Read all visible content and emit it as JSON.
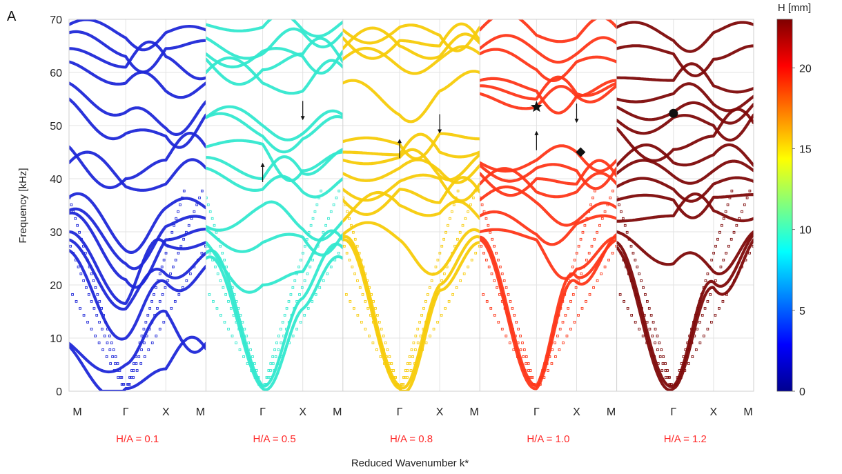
{
  "figure_label": "A",
  "chart_data": {
    "type": "scatter",
    "ylabel": "Frequency [kHz]",
    "xlabel": "Reduced Wavenumber k*",
    "ylim": [
      0,
      70
    ],
    "yticks": [
      "0",
      "10",
      "20",
      "30",
      "40",
      "50",
      "60",
      "70"
    ],
    "k_path_labels": [
      "M",
      "Γ",
      "X",
      "M"
    ],
    "grid": true,
    "colorbar": {
      "label": "H [mm]",
      "range": [
        0,
        23
      ],
      "ticks": [
        "0",
        "5",
        "10",
        "15",
        "20"
      ],
      "colormap": "jet"
    },
    "panels": [
      {
        "title": "H/A = 0.1",
        "color": "#1f28d8",
        "gap": null,
        "bands": [
          [
            8.5,
            0.5,
            4.2,
            8.0
          ],
          [
            9.0,
            5.0,
            15.0,
            9.0
          ],
          [
            26.5,
            10.0,
            20.5,
            23.5
          ],
          [
            28.5,
            15.5,
            22.0,
            26.0
          ],
          [
            30.0,
            16.5,
            27.5,
            28.0
          ],
          [
            33.5,
            21.0,
            28.5,
            30.5
          ],
          [
            34.0,
            24.0,
            31.0,
            32.5
          ],
          [
            36.5,
            26.5,
            34.5,
            34.5
          ],
          [
            43.0,
            38.5,
            39.0,
            42.0
          ],
          [
            46.0,
            40.0,
            43.5,
            46.0
          ],
          [
            55.0,
            48.5,
            48.0,
            52.0
          ],
          [
            58.0,
            52.5,
            49.5,
            54.5
          ],
          [
            62.0,
            58.0,
            56.5,
            58.0
          ],
          [
            64.5,
            61.0,
            63.0,
            59.0
          ],
          [
            67.5,
            63.0,
            64.5,
            66.0
          ],
          [
            69.0,
            66.5,
            67.5,
            68.0
          ]
        ],
        "markers": []
      },
      {
        "title": "H/A = 0.5",
        "color": "#33e8cf",
        "gap": [
          46.0,
          47.0
        ],
        "bands": [
          [
            25.0,
            0.5,
            15.5,
            25.0
          ],
          [
            26.0,
            1.0,
            17.5,
            27.0
          ],
          [
            28.0,
            20.0,
            22.5,
            28.5
          ],
          [
            30.5,
            28.0,
            29.0,
            29.5
          ],
          [
            31.0,
            35.0,
            30.5,
            32.0
          ],
          [
            42.0,
            38.0,
            37.5,
            40.0
          ],
          [
            44.0,
            40.0,
            41.0,
            45.5
          ],
          [
            46.0,
            46.5,
            41.5,
            45.0
          ],
          [
            51.5,
            48.0,
            47.5,
            51.5
          ],
          [
            51.5,
            50.0,
            48.5,
            52.0
          ],
          [
            60.0,
            58.0,
            56.5,
            61.0
          ],
          [
            62.5,
            60.5,
            63.5,
            62.0
          ],
          [
            63.5,
            64.0,
            63.0,
            64.0
          ],
          [
            66.5,
            63.5,
            67.5,
            67.5
          ],
          [
            69.0,
            68.5,
            68.0,
            69.5
          ]
        ],
        "markers": [
          {
            "shape": "arrow-up",
            "k": 1.0,
            "f": 43.0
          },
          {
            "shape": "arrow-down",
            "k": 2.0,
            "f": 51.0
          }
        ]
      },
      {
        "title": "H/A = 0.8",
        "color": "#f7cb0a",
        "gap": [
          45.0,
          47.5
        ],
        "bands": [
          [
            28.5,
            0.5,
            19.0,
            28.0
          ],
          [
            29.0,
            1.0,
            20.0,
            29.0
          ],
          [
            29.5,
            28.5,
            22.5,
            30.0
          ],
          [
            32.0,
            35.0,
            33.5,
            32.5
          ],
          [
            36.0,
            38.0,
            35.5,
            37.5
          ],
          [
            38.0,
            39.5,
            40.0,
            39.0
          ],
          [
            41.0,
            42.0,
            41.5,
            42.5
          ],
          [
            43.5,
            44.0,
            40.5,
            44.5
          ],
          [
            45.0,
            44.5,
            45.0,
            45.0
          ],
          [
            47.0,
            46.5,
            48.5,
            47.5
          ],
          [
            58.0,
            52.0,
            56.5,
            60.0
          ],
          [
            62.5,
            61.0,
            62.5,
            63.5
          ],
          [
            64.5,
            65.0,
            63.0,
            65.5
          ],
          [
            66.5,
            66.0,
            65.0,
            66.0
          ],
          [
            68.0,
            68.5,
            67.0,
            68.5
          ]
        ],
        "markers": [
          {
            "shape": "arrow-up",
            "k": 1.0,
            "f": 47.5
          },
          {
            "shape": "arrow-down",
            "k": 2.0,
            "f": 48.5
          }
        ]
      },
      {
        "title": "H/A = 1.0",
        "color": "#fe3719",
        "gap": [
          45.0,
          53.5
        ],
        "bands": [
          [
            28.5,
            0.5,
            20.5,
            29.5
          ],
          [
            29.0,
            1.0,
            21.5,
            28.5
          ],
          [
            30.0,
            28.5,
            23.0,
            29.0
          ],
          [
            33.0,
            29.5,
            31.5,
            32.5
          ],
          [
            36.0,
            35.5,
            32.0,
            34.5
          ],
          [
            39.0,
            37.5,
            37.5,
            39.0
          ],
          [
            41.0,
            40.0,
            39.0,
            40.5
          ],
          [
            42.5,
            42.0,
            41.5,
            42.0
          ],
          [
            43.0,
            43.5,
            45.0,
            43.5
          ],
          [
            56.0,
            53.5,
            55.5,
            57.5
          ],
          [
            57.5,
            55.0,
            56.0,
            58.0
          ],
          [
            58.5,
            56.5,
            55.5,
            58.5
          ],
          [
            63.5,
            60.5,
            62.0,
            62.0
          ],
          [
            64.5,
            64.0,
            63.5,
            65.5
          ],
          [
            68.0,
            67.0,
            66.5,
            68.5
          ]
        ],
        "markers": [
          {
            "shape": "arrow-up",
            "k": 1.0,
            "f": 49.0
          },
          {
            "shape": "star",
            "k": 1.0,
            "f": 53.5
          },
          {
            "shape": "arrow-down",
            "k": 2.0,
            "f": 50.5
          },
          {
            "shape": "diamond",
            "k": 2.1,
            "f": 45.0
          }
        ]
      },
      {
        "title": "H/A = 1.2",
        "color": "#7e0a0a",
        "gap": null,
        "bands": [
          [
            27.0,
            0.5,
            19.5,
            28.5
          ],
          [
            28.0,
            1.0,
            20.5,
            29.5
          ],
          [
            30.0,
            24.0,
            22.5,
            30.0
          ],
          [
            32.0,
            33.0,
            34.0,
            32.5
          ],
          [
            36.0,
            36.0,
            36.5,
            37.0
          ],
          [
            38.5,
            38.0,
            39.0,
            39.5
          ],
          [
            41.0,
            40.5,
            41.5,
            41.5
          ],
          [
            42.5,
            43.0,
            44.5,
            42.5
          ],
          [
            49.5,
            45.5,
            48.0,
            50.5
          ],
          [
            51.0,
            51.5,
            50.0,
            52.0
          ],
          [
            53.5,
            52.5,
            52.5,
            54.0
          ],
          [
            55.0,
            56.0,
            54.0,
            55.5
          ],
          [
            59.0,
            58.5,
            57.5,
            57.0
          ],
          [
            64.5,
            63.5,
            62.5,
            65.0
          ],
          [
            68.5,
            66.0,
            67.5,
            69.0
          ]
        ],
        "markers": [
          {
            "shape": "circle",
            "k": 1.0,
            "f": 52.3
          }
        ]
      }
    ]
  }
}
